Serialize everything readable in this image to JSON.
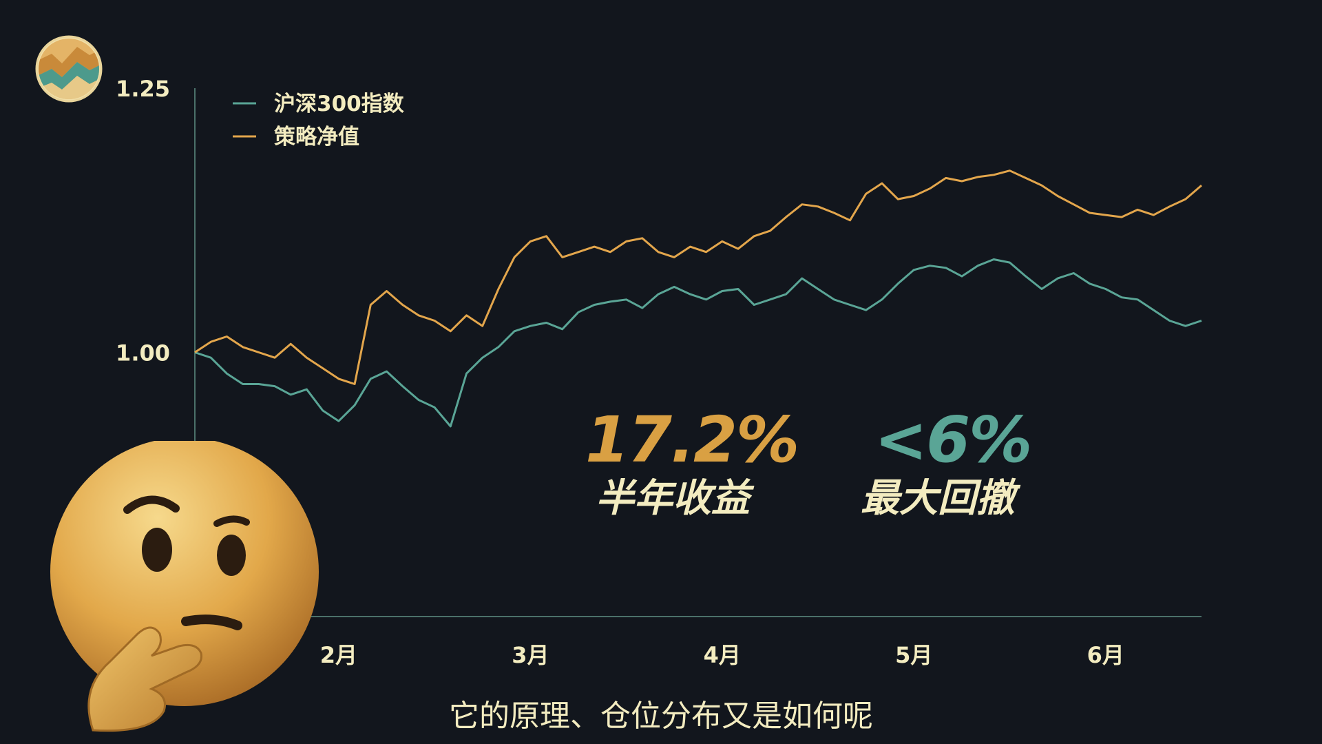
{
  "chart_data": {
    "type": "line",
    "x": [
      "2月",
      "3月",
      "4月",
      "5月",
      "6月"
    ],
    "yticks": [
      "1.25",
      "1.00"
    ],
    "ylim": [
      0.75,
      1.25
    ],
    "legend_position": "top-left",
    "grid": false,
    "series": [
      {
        "name": "沪深300指数",
        "color": "#5aa596",
        "points": [
          [
            0.0,
            1.0
          ],
          [
            0.02,
            0.995
          ],
          [
            0.04,
            0.98
          ],
          [
            0.06,
            0.97
          ],
          [
            0.08,
            0.97
          ],
          [
            0.1,
            0.968
          ],
          [
            0.12,
            0.96
          ],
          [
            0.14,
            0.965
          ],
          [
            0.16,
            0.945
          ],
          [
            0.18,
            0.935
          ],
          [
            0.2,
            0.95
          ],
          [
            0.22,
            0.975
          ],
          [
            0.24,
            0.982
          ],
          [
            0.26,
            0.968
          ],
          [
            0.28,
            0.955
          ],
          [
            0.3,
            0.948
          ],
          [
            0.32,
            0.93
          ],
          [
            0.34,
            0.98
          ],
          [
            0.36,
            0.995
          ],
          [
            0.38,
            1.005
          ],
          [
            0.4,
            1.02
          ],
          [
            0.42,
            1.025
          ],
          [
            0.44,
            1.028
          ],
          [
            0.46,
            1.022
          ],
          [
            0.48,
            1.038
          ],
          [
            0.5,
            1.045
          ],
          [
            0.52,
            1.048
          ],
          [
            0.54,
            1.05
          ],
          [
            0.56,
            1.042
          ],
          [
            0.58,
            1.055
          ],
          [
            0.6,
            1.062
          ],
          [
            0.62,
            1.055
          ],
          [
            0.64,
            1.05
          ],
          [
            0.66,
            1.058
          ],
          [
            0.68,
            1.06
          ],
          [
            0.7,
            1.045
          ],
          [
            0.72,
            1.05
          ],
          [
            0.74,
            1.055
          ],
          [
            0.76,
            1.07
          ],
          [
            0.78,
            1.06
          ],
          [
            0.8,
            1.05
          ],
          [
            0.82,
            1.045
          ],
          [
            0.84,
            1.04
          ],
          [
            0.86,
            1.05
          ],
          [
            0.88,
            1.065
          ],
          [
            0.9,
            1.078
          ],
          [
            0.92,
            1.082
          ],
          [
            0.94,
            1.08
          ],
          [
            0.96,
            1.072
          ],
          [
            0.98,
            1.082
          ],
          [
            1.0,
            1.088
          ],
          [
            1.02,
            1.085
          ],
          [
            1.04,
            1.072
          ],
          [
            1.06,
            1.06
          ],
          [
            1.08,
            1.07
          ],
          [
            1.1,
            1.075
          ],
          [
            1.12,
            1.065
          ],
          [
            1.14,
            1.06
          ],
          [
            1.16,
            1.052
          ],
          [
            1.18,
            1.05
          ],
          [
            1.2,
            1.04
          ],
          [
            1.22,
            1.03
          ],
          [
            1.24,
            1.025
          ],
          [
            1.26,
            1.03
          ]
        ]
      },
      {
        "name": "策略净值",
        "color": "#e3a64c",
        "points": [
          [
            0.0,
            1.0
          ],
          [
            0.02,
            1.01
          ],
          [
            0.04,
            1.015
          ],
          [
            0.06,
            1.005
          ],
          [
            0.08,
            1.0
          ],
          [
            0.1,
            0.995
          ],
          [
            0.12,
            1.008
          ],
          [
            0.14,
            0.995
          ],
          [
            0.16,
            0.985
          ],
          [
            0.18,
            0.975
          ],
          [
            0.2,
            0.97
          ],
          [
            0.22,
            1.045
          ],
          [
            0.24,
            1.058
          ],
          [
            0.26,
            1.045
          ],
          [
            0.28,
            1.035
          ],
          [
            0.3,
            1.03
          ],
          [
            0.32,
            1.02
          ],
          [
            0.34,
            1.035
          ],
          [
            0.36,
            1.025
          ],
          [
            0.38,
            1.06
          ],
          [
            0.4,
            1.09
          ],
          [
            0.42,
            1.105
          ],
          [
            0.44,
            1.11
          ],
          [
            0.46,
            1.09
          ],
          [
            0.48,
            1.095
          ],
          [
            0.5,
            1.1
          ],
          [
            0.52,
            1.095
          ],
          [
            0.54,
            1.105
          ],
          [
            0.56,
            1.108
          ],
          [
            0.58,
            1.095
          ],
          [
            0.6,
            1.09
          ],
          [
            0.62,
            1.1
          ],
          [
            0.64,
            1.095
          ],
          [
            0.66,
            1.105
          ],
          [
            0.68,
            1.098
          ],
          [
            0.7,
            1.11
          ],
          [
            0.72,
            1.115
          ],
          [
            0.74,
            1.128
          ],
          [
            0.76,
            1.14
          ],
          [
            0.78,
            1.138
          ],
          [
            0.8,
            1.132
          ],
          [
            0.82,
            1.125
          ],
          [
            0.84,
            1.15
          ],
          [
            0.86,
            1.16
          ],
          [
            0.88,
            1.145
          ],
          [
            0.9,
            1.148
          ],
          [
            0.92,
            1.155
          ],
          [
            0.94,
            1.165
          ],
          [
            0.96,
            1.162
          ],
          [
            0.98,
            1.166
          ],
          [
            1.0,
            1.168
          ],
          [
            1.02,
            1.172
          ],
          [
            1.04,
            1.165
          ],
          [
            1.06,
            1.158
          ],
          [
            1.08,
            1.148
          ],
          [
            1.1,
            1.14
          ],
          [
            1.12,
            1.132
          ],
          [
            1.14,
            1.13
          ],
          [
            1.16,
            1.128
          ],
          [
            1.18,
            1.135
          ],
          [
            1.2,
            1.13
          ],
          [
            1.22,
            1.138
          ],
          [
            1.24,
            1.145
          ],
          [
            1.26,
            1.158
          ]
        ]
      }
    ]
  },
  "stats": [
    {
      "value": "17.2%",
      "label": "半年收益",
      "color": "#d9a043",
      "label_color": "#f3ecc0"
    },
    {
      "value": "<6%",
      "label": "最大回撤",
      "color": "#5aa596",
      "label_color": "#f3ecc0"
    }
  ],
  "caption": "它的原理、仓位分布又是如何呢",
  "colors": {
    "background": "#12161d",
    "axis": "#5e8f83",
    "tick_text": "#f3ecc0"
  },
  "icons": {
    "logo": "stock-chart-logo-icon",
    "emoji": "thinking-face-icon"
  }
}
